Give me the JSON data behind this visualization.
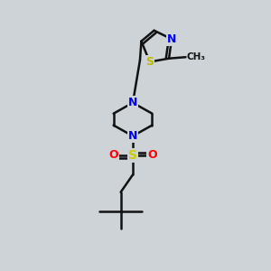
{
  "background_color": "#cdd3d6",
  "bond_color": "#111111",
  "bond_width": 1.8,
  "atom_colors": {
    "N": "#0000ee",
    "S_thiazole": "#bbbb00",
    "S_sulfonyl": "#cccc00",
    "O": "#ff0000",
    "C": "#111111"
  },
  "figsize": [
    3.0,
    3.0
  ],
  "dpi": 100,
  "xlim": [
    0,
    10
  ],
  "ylim": [
    0,
    10
  ]
}
